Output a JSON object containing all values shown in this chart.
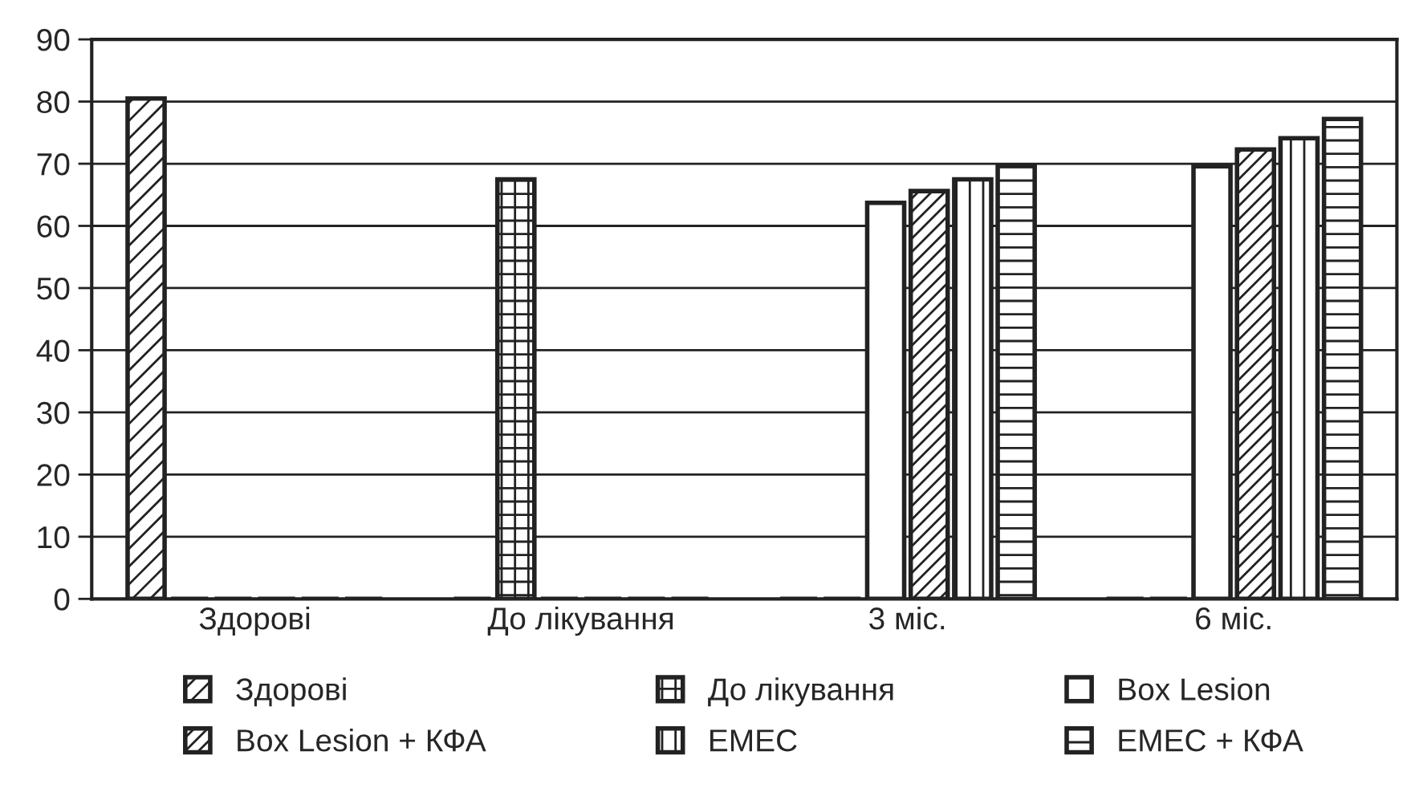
{
  "chart_data": {
    "type": "bar",
    "categories": [
      "Здорові",
      "До лікування",
      "3 міс.",
      "6 міс."
    ],
    "series": [
      {
        "name": "Здорові",
        "color": "#222222",
        "values": [
          80.5,
          0,
          0,
          0
        ]
      },
      {
        "name": "До лікування",
        "color": "#222222",
        "values": [
          0,
          67.5,
          0,
          0
        ]
      },
      {
        "name": "Box Lesion",
        "color": "#222222",
        "values": [
          0,
          0,
          63.7,
          69.6
        ]
      },
      {
        "name": "Box Lesion + КФА",
        "color": "#222222",
        "values": [
          0,
          0,
          65.6,
          72.3
        ]
      },
      {
        "name": "ЕМЕС",
        "color": "#222222",
        "values": [
          0,
          0,
          67.5,
          74.1
        ]
      },
      {
        "name": "ЕМЕС + КФА",
        "color": "#222222",
        "values": [
          0,
          0,
          69.7,
          77.2
        ]
      }
    ],
    "ylim": [
      0,
      90
    ],
    "yticks": [
      0,
      10,
      20,
      30,
      40,
      50,
      60,
      70,
      80,
      90
    ],
    "grid": "y",
    "legend": "bottom"
  }
}
